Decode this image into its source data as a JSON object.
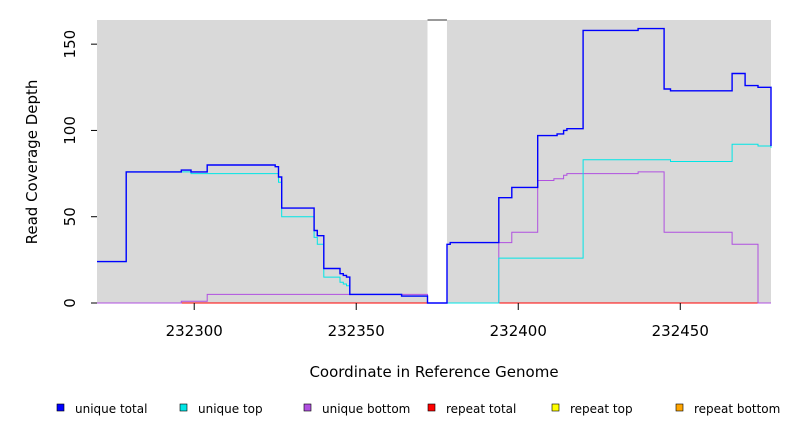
{
  "chart_data": {
    "type": "line",
    "step": true,
    "xlabel": "Coordinate in Reference Genome",
    "ylabel": "Read Coverage Depth",
    "xlim": [
      232270,
      232478
    ],
    "ylim": [
      0,
      164
    ],
    "x_ticks": [
      232300,
      232350,
      232400,
      232450
    ],
    "y_ticks": [
      0,
      50,
      100,
      150
    ],
    "background": "#d9d9d9",
    "gap": [
      232372,
      232378
    ],
    "legend_position": "bottom",
    "series": [
      {
        "name": "unique total",
        "color": "#0000ff",
        "x": [
          232270,
          232279,
          232296,
          232299,
          232304,
          232325,
          232326,
          232327,
          232337,
          232338,
          232340,
          232345,
          232346,
          232347,
          232348,
          232352,
          232364,
          232372,
          232378,
          232379,
          232394,
          232398,
          232406,
          232412,
          232414,
          232415,
          232420,
          232437,
          232445,
          232447,
          232462,
          232466,
          232470,
          232474,
          232478
        ],
        "y": [
          24,
          76,
          77,
          76,
          80,
          79,
          73,
          55,
          42,
          39,
          20,
          17,
          16,
          15,
          5,
          5,
          4,
          0,
          34,
          35,
          61,
          67,
          97,
          98,
          100,
          101,
          158,
          159,
          124,
          123,
          123,
          133,
          126,
          125,
          91
        ]
      },
      {
        "name": "unique top",
        "color": "#00e5e5",
        "x": [
          232270,
          232279,
          232296,
          232299,
          232304,
          232325,
          232326,
          232327,
          232337,
          232338,
          232340,
          232345,
          232346,
          232347,
          232348,
          232352,
          232364,
          232372,
          232378,
          232394,
          232420,
          232445,
          232447,
          232462,
          232466,
          232470,
          232474,
          232478
        ],
        "y": [
          24,
          76,
          76,
          75,
          75,
          75,
          70,
          50,
          38,
          34,
          15,
          12,
          11,
          10,
          5,
          5,
          4,
          0,
          0,
          26,
          83,
          83,
          82,
          82,
          92,
          92,
          91,
          90
        ]
      },
      {
        "name": "unique bottom",
        "color": "#b050e0",
        "x": [
          232270,
          232296,
          232304,
          232348,
          232372,
          232378,
          232394,
          232398,
          232406,
          232411,
          232414,
          232415,
          232420,
          232437,
          232445,
          232466,
          232473,
          232474,
          232478
        ],
        "y": [
          0,
          1,
          5,
          5,
          0,
          0,
          35,
          41,
          71,
          72,
          74,
          75,
          75,
          76,
          41,
          34,
          34,
          0,
          0
        ]
      },
      {
        "name": "repeat total",
        "color": "#ff0000",
        "x": [
          232270,
          232372,
          232378,
          232478
        ],
        "y": [
          0,
          0,
          0,
          0
        ]
      },
      {
        "name": "repeat top",
        "color": "#ffff00",
        "x": [
          232270,
          232372,
          232378,
          232478
        ],
        "y": [
          0,
          0,
          0,
          0
        ]
      },
      {
        "name": "repeat bottom",
        "color": "#ffa500",
        "x": [
          232270,
          232372,
          232378,
          232478
        ],
        "y": [
          0,
          0,
          0,
          0
        ]
      }
    ]
  }
}
